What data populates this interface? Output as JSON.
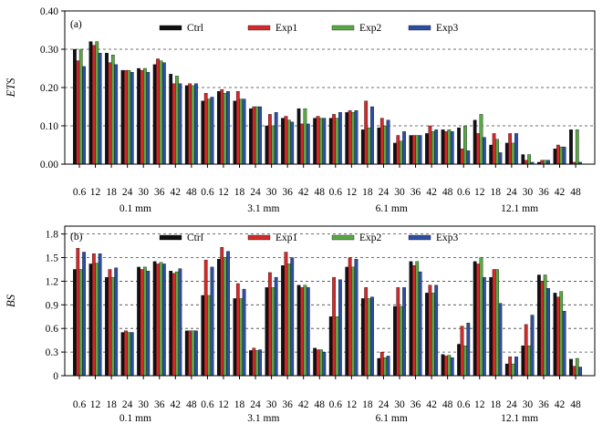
{
  "colors": {
    "Ctrl": "#111111",
    "Exp1": "#d42a2a",
    "Exp2": "#5aa845",
    "Exp3": "#2d4fa3"
  },
  "chart_data": [
    {
      "type": "bar",
      "panel_label": "(a)",
      "ylabel": "ETS",
      "ylim": [
        0,
        0.4
      ],
      "yticks": [
        "0.00",
        "0.10",
        "0.20",
        "0.30",
        "0.40"
      ],
      "ytick_values": [
        0,
        0.1,
        0.2,
        0.3,
        0.4
      ],
      "categories": [
        "0.6",
        "12",
        "18",
        "24",
        "30",
        "36",
        "42",
        "48",
        "0.6",
        "12",
        "18",
        "24",
        "30",
        "36",
        "42",
        "48",
        "0.6",
        "12",
        "18",
        "24",
        "30",
        "36",
        "42",
        "48",
        "0.6",
        "12",
        "18",
        "24",
        "30",
        "36",
        "42",
        "48"
      ],
      "groups": [
        "0.1 mm",
        "3.1 mm",
        "6.1 mm",
        "12.1 mm"
      ],
      "legend": [
        "Ctrl",
        "Exp1",
        "Exp2",
        "Exp3"
      ],
      "series": [
        {
          "name": "Ctrl",
          "values": [
            0.3,
            0.32,
            0.29,
            0.245,
            0.25,
            0.26,
            0.235,
            0.205,
            0.165,
            0.19,
            0.165,
            0.145,
            0.1,
            0.12,
            0.145,
            0.12,
            0.12,
            0.135,
            0.09,
            0.095,
            0.055,
            0.075,
            0.08,
            0.09,
            0.095,
            0.115,
            0.05,
            0.055,
            0.025,
            0.005,
            0.04,
            0.09
          ]
        },
        {
          "name": "Exp1",
          "values": [
            0.27,
            0.31,
            0.265,
            0.245,
            0.245,
            0.275,
            0.21,
            0.21,
            0.185,
            0.195,
            0.19,
            0.15,
            0.13,
            0.125,
            0.105,
            0.125,
            0.13,
            0.14,
            0.165,
            0.12,
            0.075,
            0.075,
            0.1,
            0.085,
            0.04,
            0.08,
            0.08,
            0.08,
            0.01,
            0.01,
            0.05,
            0.005
          ]
        },
        {
          "name": "Exp2",
          "values": [
            0.3,
            0.32,
            0.285,
            0.245,
            0.25,
            0.27,
            0.23,
            0.205,
            0.17,
            0.185,
            0.17,
            0.15,
            0.1,
            0.115,
            0.145,
            0.12,
            0.12,
            0.135,
            0.095,
            0.1,
            0.06,
            0.075,
            0.085,
            0.09,
            0.1,
            0.13,
            0.065,
            0.055,
            0.025,
            0.01,
            0.045,
            0.09
          ]
        },
        {
          "name": "Exp3",
          "values": [
            0.255,
            0.29,
            0.26,
            0.24,
            0.24,
            0.265,
            0.21,
            0.21,
            0.175,
            0.19,
            0.17,
            0.15,
            0.135,
            0.11,
            0.105,
            0.12,
            0.135,
            0.14,
            0.15,
            0.115,
            0.085,
            0.075,
            0.09,
            0.085,
            0.035,
            0.07,
            0.03,
            0.08,
            0.005,
            0.01,
            0.045,
            0.005
          ]
        }
      ]
    },
    {
      "type": "bar",
      "panel_label": "(b)",
      "ylabel": "BS",
      "ylim": [
        0,
        1.9
      ],
      "yticks": [
        "0",
        "0.3",
        "0.6",
        "0.9",
        "1.2",
        "1.5",
        "1.8"
      ],
      "ytick_values": [
        0,
        0.3,
        0.6,
        0.9,
        1.2,
        1.5,
        1.8
      ],
      "categories": [
        "0.6",
        "12",
        "18",
        "24",
        "30",
        "36",
        "42",
        "48",
        "0.6",
        "12",
        "18",
        "24",
        "30",
        "36",
        "42",
        "48",
        "0.6",
        "12",
        "18",
        "24",
        "30",
        "36",
        "42",
        "48",
        "0.6",
        "12",
        "18",
        "24",
        "30",
        "36",
        "42",
        "48"
      ],
      "groups": [
        "0.1 mm",
        "3.1 mm",
        "6.1 mm",
        "12.1 mm"
      ],
      "legend": [
        "Ctrl",
        "Exp1",
        "Exp2",
        "Exp3"
      ],
      "series": [
        {
          "name": "Ctrl",
          "values": [
            1.35,
            1.42,
            1.25,
            0.55,
            1.38,
            1.45,
            1.33,
            0.57,
            1.02,
            1.48,
            0.98,
            0.32,
            1.12,
            1.4,
            1.15,
            0.35,
            0.75,
            1.38,
            0.98,
            0.22,
            0.88,
            1.45,
            1.05,
            0.27,
            0.4,
            1.45,
            1.25,
            0.15,
            0.38,
            1.28,
            1.05,
            0.21
          ]
        },
        {
          "name": "Exp1",
          "values": [
            1.62,
            1.55,
            1.35,
            0.57,
            1.35,
            1.42,
            1.3,
            0.57,
            1.47,
            1.63,
            1.17,
            0.35,
            1.31,
            1.57,
            1.12,
            0.33,
            1.25,
            1.5,
            1.12,
            0.3,
            1.12,
            1.4,
            1.15,
            0.25,
            0.63,
            1.42,
            1.35,
            0.24,
            0.65,
            1.2,
            1.0,
            0.12
          ]
        },
        {
          "name": "Exp2",
          "values": [
            1.35,
            1.43,
            1.25,
            0.55,
            1.38,
            1.44,
            1.32,
            0.57,
            1.02,
            1.5,
            0.98,
            0.32,
            1.12,
            1.42,
            1.15,
            0.33,
            0.75,
            1.38,
            0.98,
            0.23,
            0.88,
            1.45,
            1.05,
            0.26,
            0.38,
            1.5,
            1.35,
            0.15,
            0.38,
            1.28,
            1.07,
            0.22
          ]
        },
        {
          "name": "Exp3",
          "values": [
            1.57,
            1.55,
            1.37,
            0.55,
            1.33,
            1.42,
            1.36,
            0.57,
            1.38,
            1.58,
            1.1,
            0.33,
            1.25,
            1.5,
            1.12,
            0.3,
            1.22,
            1.48,
            1.0,
            0.25,
            1.12,
            1.32,
            1.15,
            0.23,
            0.67,
            1.25,
            0.92,
            0.24,
            0.77,
            1.11,
            0.82,
            0.11
          ]
        }
      ]
    }
  ]
}
